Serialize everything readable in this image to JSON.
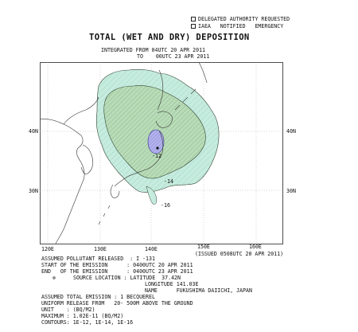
{
  "header": {
    "checkbox_1_label": "DELEGATED AUTHORITY REQUESTED",
    "checkbox_2_label": "IAEA   NOTIFIED   EMERGENCY",
    "title": "TOTAL (WET AND DRY) DEPOSITION",
    "integrated_from": "INTEGRATED FROM 04UTC 20 APR 2011",
    "integrated_to": "TO    00UTC 23 APR 2011"
  },
  "map": {
    "lat_labels": [
      "40N",
      "30N"
    ],
    "lon_labels": [
      "120E",
      "130E",
      "140E",
      "150E",
      "160E"
    ],
    "contour_labels": [
      "-12",
      "-14",
      "-16"
    ],
    "issued": "(ISSUED 0508UTC 20 APR 2011)",
    "colors": {
      "contour_1e12_fill": "#b9dcb8",
      "contour_1e14_fill": "#c5ecde",
      "contour_1e16_fill": "#b5b5ec",
      "outline": "#2f3f2f",
      "land": "#333333"
    }
  },
  "info": {
    "pollutant": "ASSUMED POLLUTANT RELEASED  : I -131",
    "start": "START OF THE EMISSION      : 0400UTC 20 APR 2011",
    "end": "END   OF THE EMISSION      : 0400UTC 23 APR 2011",
    "source": "SOURCE LOCATION : LATITUDE  37.42N",
    "longitude": "LONGITUDE 141.03E",
    "name": "NAME      FUKUSHIMA DAIICHI, JAPAN",
    "total_emission": "ASSUMED TOTAL EMISSION : 1 BECQUEREL",
    "uniform_release": "UNIFORM RELEASE FROM   20- 500M ABOVE THE GROUND",
    "unit": "UNIT    : (BQ/M2)",
    "maximum": "MAXIMUM : 1.02E-11 (BQ/M2)",
    "contours": "CONTOURS: 1E-12, 1E-14, 1E-16"
  }
}
